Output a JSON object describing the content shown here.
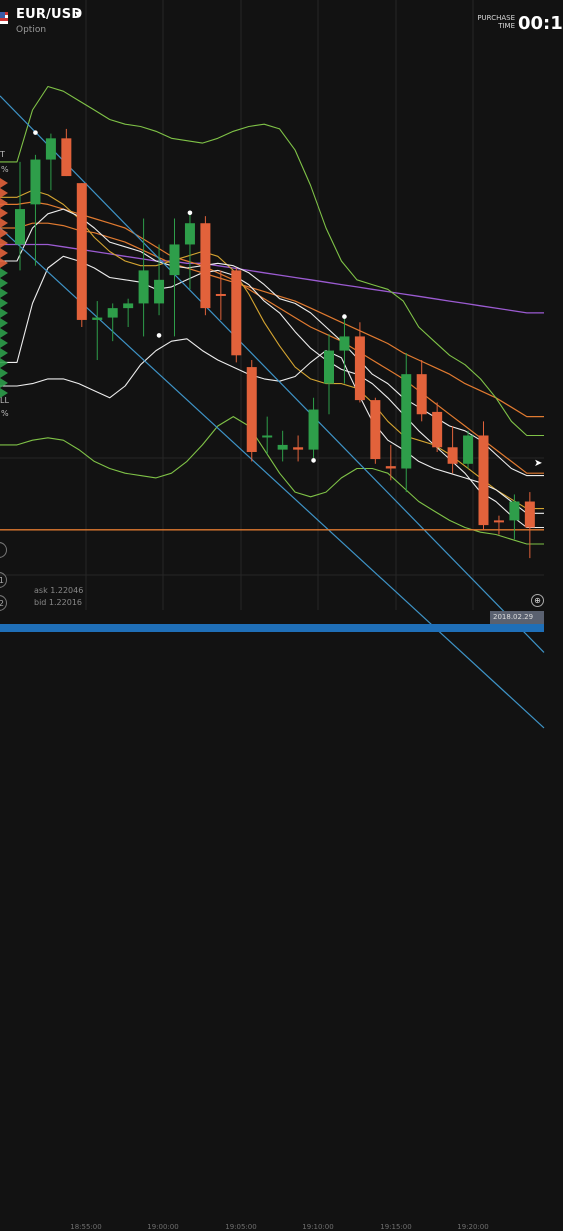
{
  "header": {
    "pair": "EUR/USD",
    "pair_caret": "▾",
    "subtitle": "Option",
    "purchase_label_1": "PURCHASE",
    "purchase_label_2": "TIME",
    "timer": "00:1"
  },
  "left_panel": {
    "upper_label": "T",
    "upper_pct": "%",
    "lower_label": "LL",
    "lower_pct": "%",
    "btn_1": "1",
    "btn_2": "2"
  },
  "quotes": {
    "ask": "ask 1.22046",
    "bid": "bid 1.22016"
  },
  "time_axis": {
    "ticks": [
      "18:55:00",
      "19:00:00",
      "19:05:00",
      "19:10:00",
      "19:15:00",
      "19:20:00"
    ],
    "current_date": "2018.02.29"
  },
  "colors": {
    "background": "#121212",
    "bull": "#2e9e4a",
    "bear": "#e2623b",
    "bb_outer": "#7fc247",
    "bb_mid": "#ededed",
    "ma_fast": "#d4a431",
    "ma_orange": "#e07a30",
    "ma_purple": "#9b5bd1",
    "trend_line": "#3e93c6",
    "price_line": "#e07a30"
  },
  "candles": [
    {
      "o": 1.2227,
      "h": 1.2229,
      "l": 1.22244,
      "c": 1.22255,
      "dir": "bull"
    },
    {
      "o": 1.22272,
      "h": 1.22293,
      "l": 1.22246,
      "c": 1.22291,
      "dir": "bull"
    },
    {
      "o": 1.22291,
      "h": 1.22302,
      "l": 1.22278,
      "c": 1.223,
      "dir": "bull"
    },
    {
      "o": 1.223,
      "h": 1.22304,
      "l": 1.22284,
      "c": 1.22284,
      "dir": "bear"
    },
    {
      "o": 1.22281,
      "h": 1.22281,
      "l": 1.2222,
      "c": 1.22223,
      "dir": "bear"
    },
    {
      "o": 1.22223,
      "h": 1.22231,
      "l": 1.22206,
      "c": 1.22224,
      "dir": "bull"
    },
    {
      "o": 1.22224,
      "h": 1.2223,
      "l": 1.22214,
      "c": 1.22228,
      "dir": "bull"
    },
    {
      "o": 1.22228,
      "h": 1.22232,
      "l": 1.2222,
      "c": 1.2223,
      "dir": "bull"
    },
    {
      "o": 1.2223,
      "h": 1.22266,
      "l": 1.22216,
      "c": 1.22244,
      "dir": "bull"
    },
    {
      "o": 1.2223,
      "h": 1.22255,
      "l": 1.22225,
      "c": 1.2224,
      "dir": "bull"
    },
    {
      "o": 1.22242,
      "h": 1.22266,
      "l": 1.22216,
      "c": 1.22255,
      "dir": "bull"
    },
    {
      "o": 1.22255,
      "h": 1.22268,
      "l": 1.22236,
      "c": 1.22264,
      "dir": "bull"
    },
    {
      "o": 1.22264,
      "h": 1.22267,
      "l": 1.22225,
      "c": 1.22228,
      "dir": "bear"
    },
    {
      "o": 1.22234,
      "h": 1.22244,
      "l": 1.22223,
      "c": 1.22234,
      "dir": "bear"
    },
    {
      "o": 1.22244,
      "h": 1.22245,
      "l": 1.22205,
      "c": 1.22208,
      "dir": "bear"
    },
    {
      "o": 1.22203,
      "h": 1.22206,
      "l": 1.22163,
      "c": 1.22167,
      "dir": "bear"
    },
    {
      "o": 1.22174,
      "h": 1.22182,
      "l": 1.22166,
      "c": 1.22174,
      "dir": "bull"
    },
    {
      "o": 1.2217,
      "h": 1.22176,
      "l": 1.22163,
      "c": 1.22168,
      "dir": "bull"
    },
    {
      "o": 1.22169,
      "h": 1.22174,
      "l": 1.22163,
      "c": 1.22168,
      "dir": "bear"
    },
    {
      "o": 1.22168,
      "h": 1.2219,
      "l": 1.22163,
      "c": 1.22185,
      "dir": "bull"
    },
    {
      "o": 1.22196,
      "h": 1.22217,
      "l": 1.22183,
      "c": 1.2221,
      "dir": "bull"
    },
    {
      "o": 1.2221,
      "h": 1.22224,
      "l": 1.22196,
      "c": 1.22216,
      "dir": "bull"
    },
    {
      "o": 1.22216,
      "h": 1.22222,
      "l": 1.22188,
      "c": 1.22189,
      "dir": "bear"
    },
    {
      "o": 1.22189,
      "h": 1.2219,
      "l": 1.22162,
      "c": 1.22164,
      "dir": "bear"
    },
    {
      "o": 1.22161,
      "h": 1.2217,
      "l": 1.22155,
      "c": 1.2216,
      "dir": "bear"
    },
    {
      "o": 1.2216,
      "h": 1.22209,
      "l": 1.2215,
      "c": 1.222,
      "dir": "bull"
    },
    {
      "o": 1.222,
      "h": 1.22206,
      "l": 1.2218,
      "c": 1.22183,
      "dir": "bear"
    },
    {
      "o": 1.22184,
      "h": 1.22188,
      "l": 1.22167,
      "c": 1.22169,
      "dir": "bear"
    },
    {
      "o": 1.22169,
      "h": 1.22178,
      "l": 1.22158,
      "c": 1.22162,
      "dir": "bear"
    },
    {
      "o": 1.22162,
      "h": 1.22176,
      "l": 1.2216,
      "c": 1.22174,
      "dir": "bull"
    },
    {
      "o": 1.22174,
      "h": 1.2218,
      "l": 1.22134,
      "c": 1.22136,
      "dir": "bear"
    },
    {
      "o": 1.22138,
      "h": 1.2214,
      "l": 1.22132,
      "c": 1.22138,
      "dir": "bear"
    },
    {
      "o": 1.22138,
      "h": 1.22149,
      "l": 1.2213,
      "c": 1.22146,
      "dir": "bull"
    },
    {
      "o": 1.22146,
      "h": 1.2215,
      "l": 1.22122,
      "c": 1.22135,
      "dir": "bear"
    }
  ],
  "price_scale": {
    "min": 1.221,
    "max": 1.2234
  },
  "price_level": 1.22134,
  "bb_upper": [
    1.2229,
    1.22312,
    1.22322,
    1.2232,
    1.22316,
    1.22312,
    1.22308,
    1.22306,
    1.22305,
    1.22303,
    1.223,
    1.22299,
    1.22298,
    1.223,
    1.22303,
    1.22305,
    1.22306,
    1.22304,
    1.22295,
    1.2228,
    1.22262,
    1.22248,
    1.2224,
    1.22238,
    1.22236,
    1.22231,
    1.2222,
    1.22214,
    1.22208,
    1.22204,
    1.22198,
    1.2219,
    1.2218,
    1.22174
  ],
  "bb_mid_1": [
    1.22248,
    1.22262,
    1.22268,
    1.2227,
    1.22267,
    1.22262,
    1.22256,
    1.22254,
    1.22252,
    1.22248,
    1.22246,
    1.22245,
    1.22246,
    1.22247,
    1.22246,
    1.22243,
    1.22238,
    1.22232,
    1.2223,
    1.22226,
    1.2222,
    1.22214,
    1.22207,
    1.222,
    1.22196,
    1.2219,
    1.22186,
    1.22182,
    1.22178,
    1.22176,
    1.22172,
    1.22166,
    1.2216,
    1.22157
  ],
  "bb_mid_2": [
    1.22205,
    1.2223,
    1.22245,
    1.2225,
    1.22248,
    1.22245,
    1.22241,
    1.2224,
    1.22239,
    1.22236,
    1.22237,
    1.2224,
    1.22243,
    1.22244,
    1.22242,
    1.22238,
    1.22231,
    1.22226,
    1.22218,
    1.22211,
    1.22206,
    1.22202,
    1.222,
    1.22196,
    1.2219,
    1.22183,
    1.22176,
    1.2217,
    1.22164,
    1.22158,
    1.2215,
    1.22146,
    1.2214,
    1.22135
  ],
  "bb_mid_3": [
    1.22195,
    1.22196,
    1.22198,
    1.22198,
    1.22196,
    1.22193,
    1.2219,
    1.22195,
    1.22204,
    1.2221,
    1.22214,
    1.22215,
    1.2221,
    1.22206,
    1.22203,
    1.222,
    1.22198,
    1.22197,
    1.22199,
    1.22205,
    1.2221,
    1.22207,
    1.22193,
    1.2218,
    1.22172,
    1.22168,
    1.22163,
    1.2216,
    1.22158,
    1.22156,
    1.22154,
    1.22151,
    1.22146,
    1.22141
  ],
  "bb_lower": [
    1.2217,
    1.22172,
    1.22173,
    1.22172,
    1.22168,
    1.22163,
    1.2216,
    1.22158,
    1.22157,
    1.22156,
    1.22158,
    1.22163,
    1.2217,
    1.22178,
    1.22182,
    1.22178,
    1.22168,
    1.22158,
    1.2215,
    1.22148,
    1.2215,
    1.22156,
    1.2216,
    1.2216,
    1.22158,
    1.22152,
    1.22146,
    1.22142,
    1.22138,
    1.22135,
    1.22133,
    1.22132,
    1.2213,
    1.22128
  ],
  "ma_orange_1": [
    1.22272,
    1.22273,
    1.22272,
    1.2227,
    1.22268,
    1.22266,
    1.22264,
    1.22262,
    1.22258,
    1.22254,
    1.2225,
    1.22248,
    1.22246,
    1.22243,
    1.2224,
    1.22236,
    1.22232,
    1.22228,
    1.22224,
    1.2222,
    1.22217,
    1.22214,
    1.2221,
    1.22206,
    1.22202,
    1.22198,
    1.22193,
    1.22188,
    1.22183,
    1.22178,
    1.22173,
    1.22168,
    1.22163,
    1.22158
  ],
  "ma_orange_2": [
    1.22262,
    1.22264,
    1.22264,
    1.22263,
    1.22261,
    1.2226,
    1.22258,
    1.22256,
    1.22253,
    1.2225,
    1.22247,
    1.22245,
    1.22243,
    1.22241,
    1.22239,
    1.22237,
    1.22235,
    1.22233,
    1.22231,
    1.22228,
    1.22225,
    1.22222,
    1.22219,
    1.22216,
    1.22213,
    1.22209,
    1.22206,
    1.22203,
    1.222,
    1.22196,
    1.22193,
    1.2219,
    1.22186,
    1.22182
  ],
  "ma_purple": [
    1.22255,
    1.22255,
    1.22255,
    1.22254,
    1.22253,
    1.22252,
    1.22251,
    1.2225,
    1.22249,
    1.22248,
    1.22248,
    1.22247,
    1.22247,
    1.22246,
    1.22245,
    1.22244,
    1.22243,
    1.22242,
    1.22241,
    1.2224,
    1.22239,
    1.22238,
    1.22237,
    1.22236,
    1.22235,
    1.22234,
    1.22233,
    1.22232,
    1.22231,
    1.2223,
    1.22229,
    1.22228,
    1.22227,
    1.22226
  ],
  "ma_yellow": [
    1.22275,
    1.22278,
    1.22276,
    1.22272,
    1.22266,
    1.22258,
    1.22252,
    1.22248,
    1.22246,
    1.22246,
    1.22248,
    1.2225,
    1.22252,
    1.2225,
    1.22244,
    1.22234,
    1.22222,
    1.22212,
    1.22203,
    1.22198,
    1.22196,
    1.22196,
    1.22194,
    1.22188,
    1.2218,
    1.22174,
    1.22172,
    1.2217,
    1.22166,
    1.22161,
    1.22156,
    1.22151,
    1.22147,
    1.22143
  ]
}
